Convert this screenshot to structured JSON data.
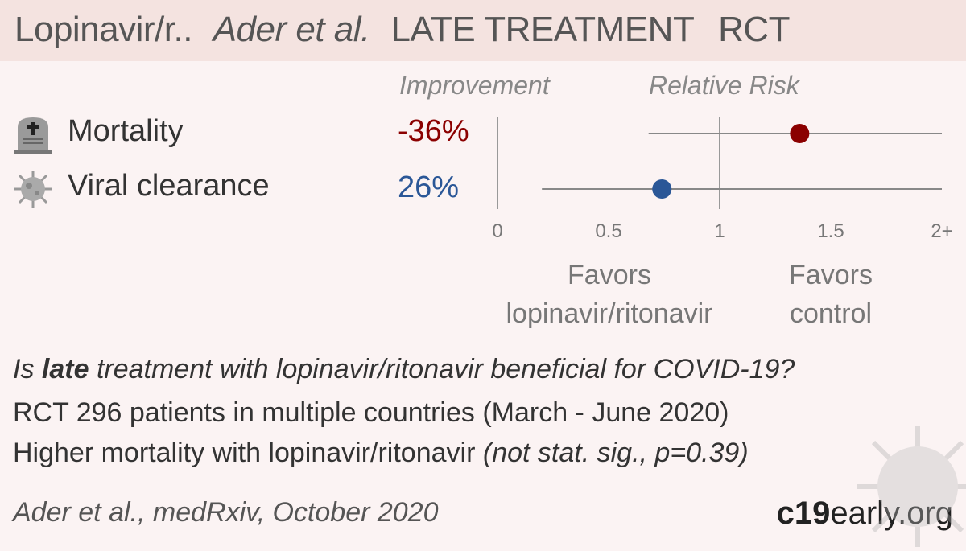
{
  "header": {
    "drug": "Lopinavir/r..",
    "authors": "Ader et al.",
    "stage": "LATE TREATMENT",
    "design": "RCT"
  },
  "columns": {
    "improvement": "Improvement",
    "relative_risk": "Relative Risk"
  },
  "outcomes": [
    {
      "label": "Mortality",
      "icon": "tombstone-icon",
      "improvement": "-36%",
      "color": "#8b0000"
    },
    {
      "label": "Viral clearance",
      "icon": "virus-icon",
      "improvement": "26%",
      "color": "#2b5797"
    }
  ],
  "favors": {
    "left_line1": "Favors",
    "left_line2": "lopinavir/ritonavir",
    "right_line1": "Favors",
    "right_line2": "control"
  },
  "summary": {
    "question_prefix": "Is ",
    "question_bold": "late",
    "question_rest": " treatment with lopinavir/ritonavir beneficial for COVID-19?",
    "line2": "RCT 296 patients in multiple countries (March - June 2020)",
    "line3_prefix": "Higher mortality with lopinavir/ritonavir ",
    "line3_italic": "(not stat. sig., p=0.39)"
  },
  "citation": "Ader et al., medRxiv, October 2020",
  "brand": {
    "bold": "c19",
    "rest": "early.org"
  },
  "chart_data": {
    "type": "scatter",
    "title": "Relative Risk",
    "xlim": [
      0,
      2
    ],
    "ticks": [
      "0",
      "0.5",
      "1",
      "1.5",
      "2+"
    ],
    "tick_values": [
      0,
      0.5,
      1,
      1.5,
      2
    ],
    "reference_line": 1,
    "series": [
      {
        "name": "Mortality",
        "rr": 1.36,
        "ci": [
          0.68,
          2.0
        ],
        "color": "#8b0000"
      },
      {
        "name": "Viral clearance",
        "rr": 0.74,
        "ci": [
          0.2,
          2.0
        ],
        "color": "#2b5797"
      }
    ]
  }
}
